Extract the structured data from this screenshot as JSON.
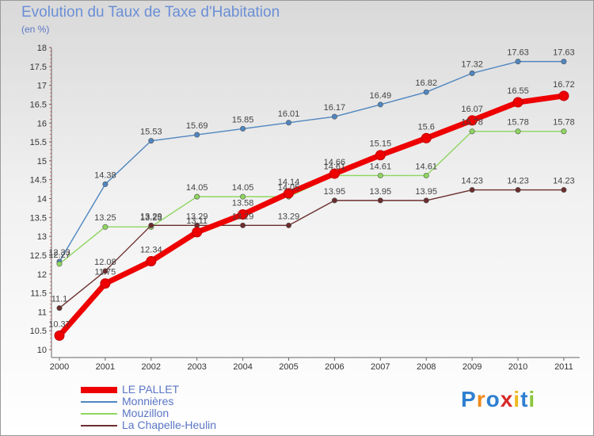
{
  "chart_data": {
    "type": "line",
    "title": "Evolution du Taux de Taxe d'Habitation",
    "ylabel": "(en %)",
    "xlabel": "",
    "categories": [
      "2000",
      "2001",
      "2002",
      "2003",
      "2004",
      "2005",
      "2006",
      "2007",
      "2008",
      "2009",
      "2010",
      "2011"
    ],
    "ylim": [
      10,
      18
    ],
    "yticks": [
      "10",
      "10.5",
      "11",
      "11.5",
      "12",
      "12.5",
      "13",
      "13.5",
      "14",
      "14.5",
      "15",
      "15.5",
      "16",
      "16.5",
      "17",
      "17.5",
      "18"
    ],
    "grid": false,
    "legend_position": "bottom-left",
    "series": [
      {
        "name": "Monnières",
        "color": "#4f86c0",
        "values": [
          12.33,
          14.38,
          15.53,
          15.69,
          15.85,
          16.01,
          16.17,
          16.49,
          16.82,
          17.32,
          17.63,
          17.63
        ],
        "labels": [
          "12.33",
          "14.38",
          "15.53",
          "15.69",
          "15.85",
          "16.01",
          "16.17",
          "16.49",
          "16.82",
          "17.32",
          "17.63",
          "17.63"
        ]
      },
      {
        "name": "Mouzillon",
        "color": "#8ed65f",
        "values": [
          12.27,
          13.25,
          13.25,
          14.05,
          14.05,
          14.05,
          14.61,
          14.61,
          14.61,
          15.78,
          15.78,
          15.78
        ],
        "labels": [
          "12.27",
          "13.25",
          "13.25",
          "14.05",
          "14.05",
          "14.05",
          "14.61",
          "14.61",
          "14.61",
          "15.78",
          "15.78",
          "15.78"
        ]
      },
      {
        "name": "La Chapelle-Heulin",
        "color": "#6b2e2e",
        "values": [
          11.1,
          12.08,
          13.29,
          13.29,
          13.29,
          13.29,
          13.95,
          13.95,
          13.95,
          14.23,
          14.23,
          14.23
        ],
        "labels": [
          "11.1",
          "12.08",
          "13.29",
          "13.29",
          "13.29",
          "13.29",
          "13.95",
          "13.95",
          "13.95",
          "14.23",
          "14.23",
          "14.23"
        ]
      },
      {
        "name": "LE PALLET",
        "color": "#ee0000",
        "values": [
          10.37,
          11.75,
          12.34,
          13.11,
          13.58,
          14.14,
          14.66,
          15.15,
          15.6,
          16.07,
          16.55,
          16.72
        ],
        "labels": [
          "10.37",
          "11.75",
          "12.34",
          "13.11",
          "13.58",
          "14.14",
          "14.66",
          "15.15",
          "15.6",
          "16.07",
          "16.55",
          "16.72"
        ]
      }
    ],
    "legend": [
      {
        "label": "LE PALLET",
        "color": "#ee0000"
      },
      {
        "label": "Monnières",
        "color": "#4f86c0"
      },
      {
        "label": "Mouzillon",
        "color": "#8ed65f"
      },
      {
        "label": "La Chapelle-Heulin",
        "color": "#6b2e2e"
      }
    ]
  },
  "brand": {
    "letters": [
      "P",
      "r",
      "o",
      "x",
      "i",
      "t",
      "i"
    ],
    "colors": [
      "#2f7fd1",
      "#f08a1c",
      "#2f7fd1",
      "#d62a2a",
      "#f0b81c",
      "#2f7fd1",
      "#8cc63f"
    ]
  }
}
